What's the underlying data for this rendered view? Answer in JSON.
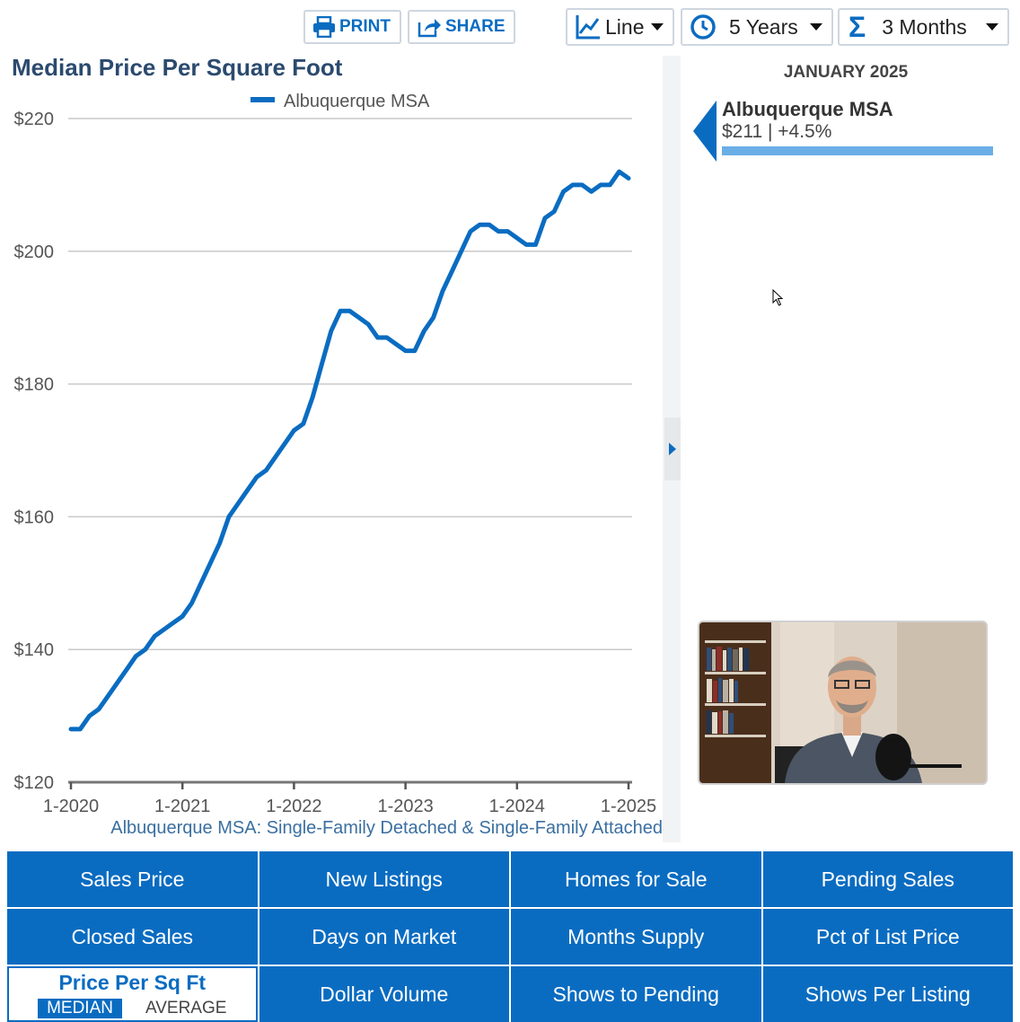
{
  "toolbar": {
    "print_label": "PRINT",
    "share_label": "SHARE",
    "chart_type": "Line",
    "range": "5 Years",
    "rollup": "3 Months"
  },
  "chart_title": "Median Price Per Square Foot",
  "sidebar": {
    "date": "JANUARY 2025",
    "region": "Albuquerque MSA",
    "value": "$211 | +4.5%"
  },
  "metrics": [
    "Sales Price",
    "New Listings",
    "Homes for Sale",
    "Pending Sales",
    "Closed Sales",
    "Days on Market",
    "Months Supply",
    "Pct of List Price",
    "Price Per Sq Ft",
    "Dollar Volume",
    "Shows to Pending",
    "Shows Per Listing"
  ],
  "active_metric_options": {
    "median": "MEDIAN",
    "average": "AVERAGE"
  },
  "colors": {
    "accent": "#0a6cc1",
    "line": "#0a6cc1",
    "bar": "#6aaee6"
  },
  "chart_data": {
    "type": "line",
    "title": "Median Price Per Square Foot",
    "subtitle": "Albuquerque MSA: Single-Family Detached & Single-Family Attached",
    "ylim": [
      120,
      220
    ],
    "yticks": [
      120,
      140,
      160,
      180,
      200,
      220
    ],
    "ytick_labels": [
      "$120",
      "$140",
      "$160",
      "$180",
      "$200",
      "$220"
    ],
    "xtick_labels": [
      "1-2020",
      "1-2021",
      "1-2022",
      "1-2023",
      "1-2024",
      "1-2025"
    ],
    "grid": true,
    "legend": "top-center",
    "x_start": "2020-01",
    "x_end": "2025-01",
    "series": [
      {
        "name": "Albuquerque MSA",
        "values": [
          128,
          128,
          130,
          131,
          133,
          135,
          137,
          139,
          140,
          142,
          143,
          144,
          145,
          147,
          150,
          153,
          156,
          160,
          162,
          164,
          166,
          167,
          169,
          171,
          173,
          174,
          178,
          183,
          188,
          191,
          191,
          190,
          189,
          187,
          187,
          186,
          185,
          185,
          188,
          190,
          194,
          197,
          200,
          203,
          204,
          204,
          203,
          203,
          202,
          201,
          201,
          205,
          206,
          209,
          210,
          210,
          209,
          210,
          210,
          212,
          211
        ]
      }
    ]
  }
}
